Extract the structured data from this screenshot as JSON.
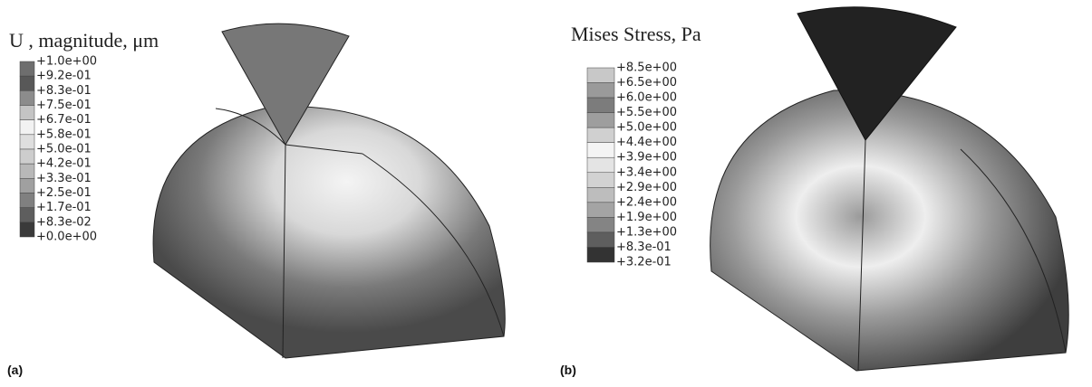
{
  "panels": [
    {
      "label": "(a)",
      "legend_title": "U , magnitude, μm",
      "legend_labels": [
        "+1.0e+00",
        "+9.2e-01",
        "+8.3e-01",
        "+7.5e-01",
        "+6.7e-01",
        "+5.8e-01",
        "+5.0e-01",
        "+4.2e-01",
        "+3.3e-01",
        "+2.5e-01",
        "+1.7e-01",
        "+8.3e-02",
        "+0.0e+00"
      ]
    },
    {
      "label": "(b)",
      "legend_title": "Mises Stress, Pa",
      "legend_labels": [
        "+8.5e+00",
        "+6.5e+00",
        "+6.0e+00",
        "+5.5e+00",
        "+5.0e+00",
        "+4.4e+00",
        "+3.9e+00",
        "+3.4e+00",
        "+2.9e+00",
        "+2.4e+00",
        "+1.9e+00",
        "+1.3e+00",
        "+8.3e-01",
        "+3.2e-01"
      ]
    }
  ]
}
